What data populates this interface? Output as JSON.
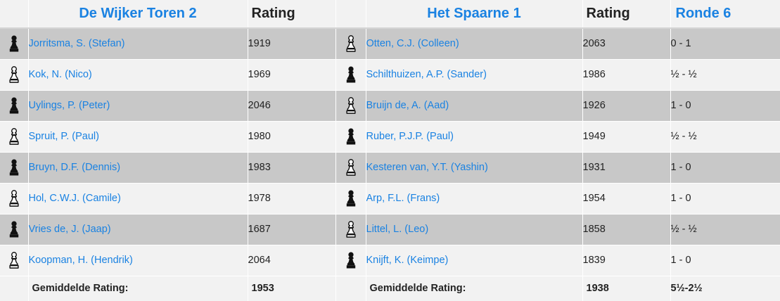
{
  "header": {
    "home_team": "De Wijker Toren 2",
    "away_team": "Het Spaarne 1",
    "rating_label_home": "Rating",
    "rating_label_away": "Rating",
    "round_label": "Ronde 6"
  },
  "colors": {
    "link": "#1a82e2",
    "row_dark": "#c8c8c8",
    "row_light": "#f2f2f2"
  },
  "boards": [
    {
      "home_piece": "black-pawn-icon",
      "home_name": "Jorritsma, S. (Stefan)",
      "home_rating": "1919",
      "away_piece": "white-pawn-icon",
      "away_name": "Otten, C.J. (Colleen)",
      "away_rating": "2063",
      "result": "0 - 1"
    },
    {
      "home_piece": "white-pawn-icon",
      "home_name": "Kok, N. (Nico)",
      "home_rating": "1969",
      "away_piece": "black-pawn-icon",
      "away_name": "Schilthuizen, A.P. (Sander)",
      "away_rating": "1986",
      "result": "½ - ½"
    },
    {
      "home_piece": "black-pawn-icon",
      "home_name": "Uylings, P. (Peter)",
      "home_rating": "2046",
      "away_piece": "white-pawn-icon",
      "away_name": "Bruijn de, A. (Aad)",
      "away_rating": "1926",
      "result": "1 - 0"
    },
    {
      "home_piece": "white-pawn-icon",
      "home_name": "Spruit, P. (Paul)",
      "home_rating": "1980",
      "away_piece": "black-pawn-icon",
      "away_name": "Ruber, P.J.P. (Paul)",
      "away_rating": "1949",
      "result": "½ - ½"
    },
    {
      "home_piece": "black-pawn-icon",
      "home_name": "Bruyn, D.F. (Dennis)",
      "home_rating": "1983",
      "away_piece": "white-pawn-icon",
      "away_name": "Kesteren van, Y.T. (Yashin)",
      "away_rating": "1931",
      "result": "1 - 0"
    },
    {
      "home_piece": "white-pawn-icon",
      "home_name": "Hol, C.W.J. (Camile)",
      "home_rating": "1978",
      "away_piece": "black-pawn-icon",
      "away_name": "Arp, F.L. (Frans)",
      "away_rating": "1954",
      "result": "1 - 0"
    },
    {
      "home_piece": "black-pawn-icon",
      "home_name": "Vries de, J. (Jaap)",
      "home_rating": "1687",
      "away_piece": "white-pawn-icon",
      "away_name": "Littel, L. (Leo)",
      "away_rating": "1858",
      "result": "½ - ½"
    },
    {
      "home_piece": "white-pawn-icon",
      "home_name": "Koopman, H. (Hendrik)",
      "home_rating": "2064",
      "away_piece": "black-pawn-icon",
      "away_name": "Knijft, K. (Keimpe)",
      "away_rating": "1839",
      "result": "1 - 0"
    }
  ],
  "footer": {
    "home_label": "Gemiddelde Rating:",
    "home_avg": "1953",
    "away_label": "Gemiddelde Rating:",
    "away_avg": "1938",
    "total": "5½-2½"
  }
}
